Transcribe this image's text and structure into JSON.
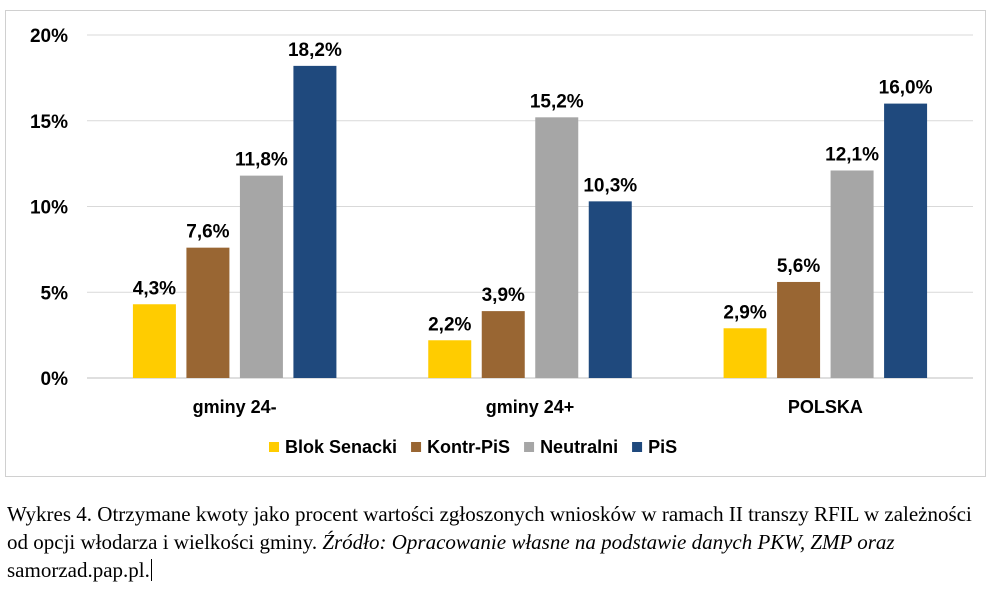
{
  "chart_data": {
    "type": "bar",
    "categories": [
      "gminy 24-",
      "gminy 24+",
      "POLSKA"
    ],
    "series": [
      {
        "name": "Blok Senacki",
        "color": "#FFCC00",
        "values": [
          4.3,
          2.2,
          2.9
        ],
        "labels": [
          "4,3%",
          "2,2%",
          "2,9%"
        ]
      },
      {
        "name": "Kontr-PiS",
        "color": "#996633",
        "values": [
          7.6,
          3.9,
          5.6
        ],
        "labels": [
          "7,6%",
          "3,9%",
          "5,6%"
        ]
      },
      {
        "name": "Neutralni",
        "color": "#A6A6A6",
        "values": [
          11.8,
          15.2,
          12.1
        ],
        "labels": [
          "11,8%",
          "15,2%",
          "12,1%"
        ]
      },
      {
        "name": "PiS",
        "color": "#1F497D",
        "values": [
          18.2,
          10.3,
          16.0
        ],
        "labels": [
          "18,2%",
          "10,3%",
          "16,0%"
        ]
      }
    ],
    "ylim": [
      0,
      20
    ],
    "yticks": [
      0,
      5,
      10,
      15,
      20
    ],
    "ytick_labels": [
      "0%",
      "5%",
      "10%",
      "15%",
      "20%"
    ],
    "grid": true,
    "legend_position": "bottom"
  },
  "caption": {
    "normal_1": "Wykres 4. Otrzymane kwoty jako procent wartości zgłoszonych wniosków w ramach II transzy RFIL w zależności od opcji włodarza i wielkości gminy. ",
    "italic": "Źródło: Opracowanie własne na podstawie danych PKW, ZMP oraz",
    "normal_2": " samorzad.pap.pl."
  }
}
